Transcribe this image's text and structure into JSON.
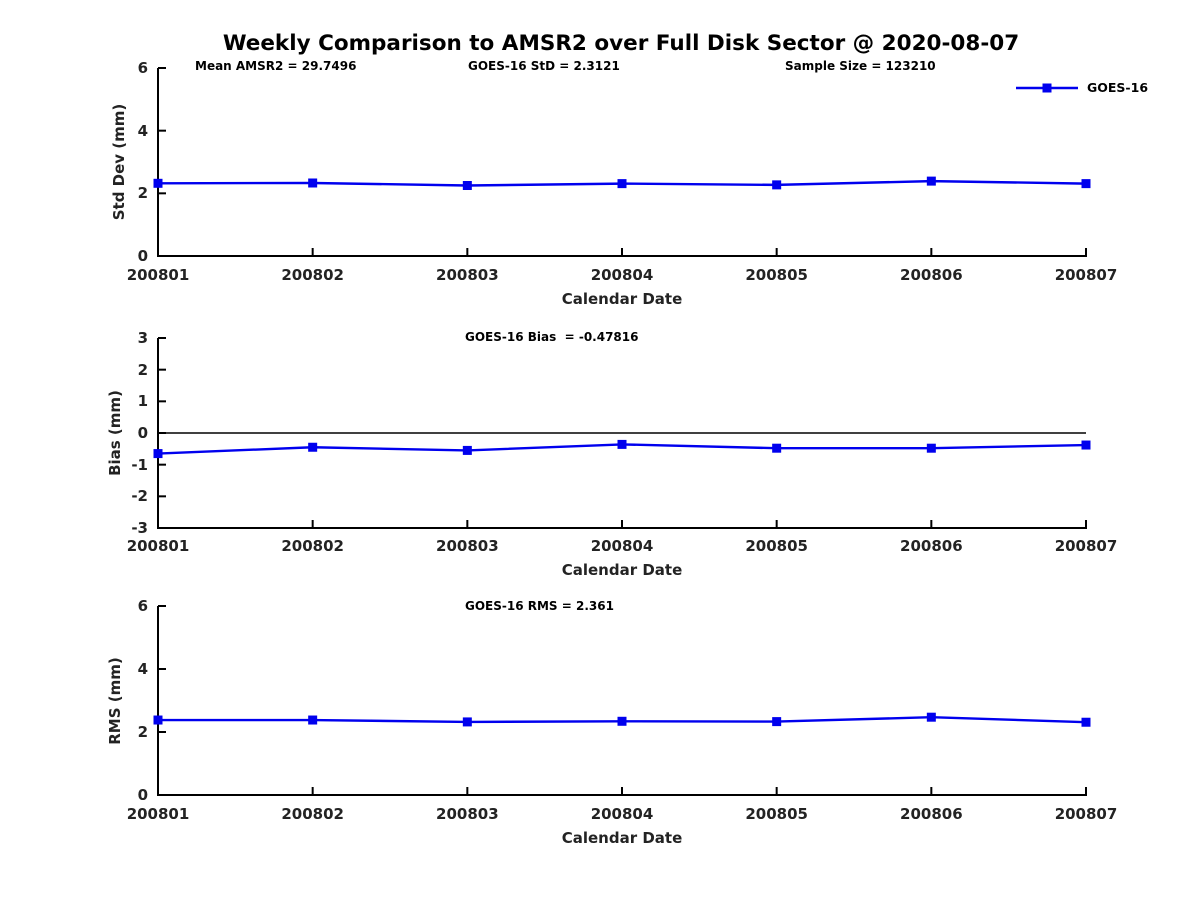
{
  "title": "Weekly Comparison to AMSR2 over Full Disk Sector @ 2020-08-07",
  "colors": {
    "series": "#0000EE",
    "axis": "#000000",
    "tick_text": "#232323"
  },
  "legend": {
    "label": "GOES-16",
    "position": "upper-right"
  },
  "chart_data": [
    {
      "type": "line",
      "id": "std-dev",
      "xlabel": "Calendar Date",
      "ylabel": "Std Dev (mm)",
      "ylim": [
        0,
        6
      ],
      "yticks": [
        0,
        2,
        4,
        6
      ],
      "grid": false,
      "categories": [
        "200801",
        "200802",
        "200803",
        "200804",
        "200805",
        "200806",
        "200807"
      ],
      "series": [
        {
          "name": "GOES-16",
          "values": [
            2.32,
            2.33,
            2.25,
            2.31,
            2.27,
            2.39,
            2.31
          ]
        }
      ],
      "annotations": [
        {
          "text": "Mean AMSR2 = 29.7496"
        },
        {
          "text": "GOES-16 StD = 2.3121"
        },
        {
          "text": "Sample Size = 123210"
        }
      ]
    },
    {
      "type": "line",
      "id": "bias",
      "xlabel": "Calendar Date",
      "ylabel": "Bias (mm)",
      "ylim": [
        -3,
        3
      ],
      "yticks": [
        -3,
        -2,
        -1,
        0,
        1,
        2,
        3
      ],
      "zero_line": true,
      "grid": false,
      "categories": [
        "200801",
        "200802",
        "200803",
        "200804",
        "200805",
        "200806",
        "200807"
      ],
      "series": [
        {
          "name": "GOES-16",
          "values": [
            -0.65,
            -0.45,
            -0.55,
            -0.36,
            -0.48,
            -0.48,
            -0.38
          ]
        }
      ],
      "annotations": [
        {
          "text": "GOES-16 Bias  = -0.47816"
        }
      ]
    },
    {
      "type": "line",
      "id": "rms",
      "xlabel": "Calendar Date",
      "ylabel": "RMS (mm)",
      "ylim": [
        0,
        6
      ],
      "yticks": [
        0,
        2,
        4,
        6
      ],
      "grid": false,
      "categories": [
        "200801",
        "200802",
        "200803",
        "200804",
        "200805",
        "200806",
        "200807"
      ],
      "series": [
        {
          "name": "GOES-16",
          "values": [
            2.38,
            2.38,
            2.32,
            2.34,
            2.33,
            2.47,
            2.31
          ]
        }
      ],
      "annotations": [
        {
          "text": "GOES-16 RMS = 2.361"
        }
      ]
    }
  ]
}
